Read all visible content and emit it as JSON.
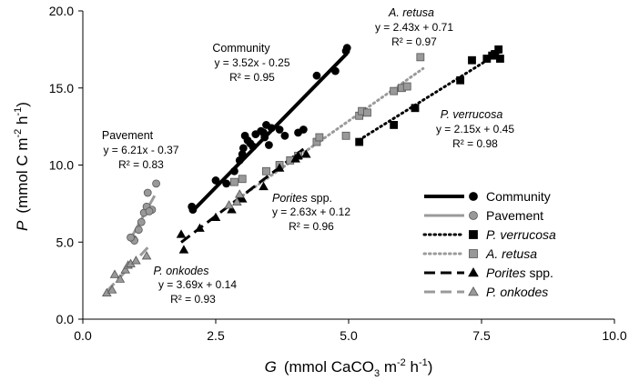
{
  "chart_data": {
    "type": "scatter",
    "xlabel": {
      "symbol": "G",
      "text": "(mmol CaCO",
      "sub": "3",
      "after": " m",
      "sup": "-2",
      "tail": " h",
      "sup2": "-1",
      "close": ")"
    },
    "ylabel": {
      "symbol": "P",
      "text": "(mmol C m",
      "sup": "-2",
      "tail": " h",
      "sup2": "-1",
      "close": ")"
    },
    "xlim": [
      0.0,
      10.0
    ],
    "ylim": [
      0.0,
      20.0
    ],
    "xticks": [
      "0.0",
      "2.5",
      "5.0",
      "7.5",
      "10.0"
    ],
    "xtick_values": [
      0,
      2.5,
      5,
      7.5,
      10
    ],
    "yticks": [
      "0.0",
      "5.0",
      "10.0",
      "15.0",
      "20.0"
    ],
    "ytick_values": [
      0,
      5,
      10,
      15,
      20
    ],
    "series": [
      {
        "name": "Community",
        "marker": "circle",
        "color": "#000000",
        "line": "solid",
        "points": [
          [
            2.07,
            7.1
          ],
          [
            2.05,
            7.3
          ],
          [
            2.5,
            9.0
          ],
          [
            2.7,
            8.8
          ],
          [
            2.85,
            9.6
          ],
          [
            2.95,
            10.3
          ],
          [
            3.0,
            10.7
          ],
          [
            3.02,
            11.1
          ],
          [
            3.1,
            11.6
          ],
          [
            3.15,
            11.4
          ],
          [
            3.05,
            11.9
          ],
          [
            3.2,
            11.2
          ],
          [
            3.25,
            12.0
          ],
          [
            3.35,
            12.2
          ],
          [
            3.4,
            12.1
          ],
          [
            3.42,
            11.8
          ],
          [
            3.5,
            11.3
          ],
          [
            3.55,
            12.4
          ],
          [
            3.45,
            12.6
          ],
          [
            3.7,
            12.3
          ],
          [
            3.8,
            11.9
          ],
          [
            4.05,
            12.1
          ],
          [
            4.15,
            12.3
          ],
          [
            4.4,
            15.8
          ],
          [
            4.75,
            16.1
          ],
          [
            4.97,
            17.6
          ],
          [
            4.95,
            17.4
          ]
        ],
        "trend": {
          "x": [
            2.07,
            4.97
          ]
        },
        "equation": "y = 3.52x - 0.25",
        "r2": "R² = 0.95",
        "label": "Community"
      },
      {
        "name": "Pavement",
        "marker": "circle",
        "color": "#999999",
        "line": "solid",
        "points": [
          [
            0.95,
            5.2
          ],
          [
            0.97,
            5.1
          ],
          [
            0.9,
            5.3
          ],
          [
            1.05,
            5.8
          ],
          [
            1.1,
            6.3
          ],
          [
            1.15,
            6.9
          ],
          [
            1.2,
            7.3
          ],
          [
            1.22,
            8.2
          ],
          [
            1.3,
            7.1
          ],
          [
            1.25,
            7.0
          ],
          [
            1.38,
            8.8
          ]
        ],
        "trend": {
          "x": [
            0.9,
            1.35
          ]
        },
        "equation": "y = 6.21x - 0.37",
        "r2": "R² = 0.83",
        "label": "Pavement"
      },
      {
        "name": "P. verrucosa",
        "marker": "square",
        "color": "#000000",
        "line": "dotted",
        "points": [
          [
            5.2,
            11.5
          ],
          [
            5.85,
            12.6
          ],
          [
            6.25,
            13.7
          ],
          [
            7.1,
            15.5
          ],
          [
            7.32,
            16.8
          ],
          [
            7.7,
            17.1
          ],
          [
            7.75,
            17.2
          ],
          [
            7.82,
            17.5
          ],
          [
            7.85,
            16.9
          ],
          [
            7.6,
            16.9
          ]
        ],
        "trend": {
          "x": [
            5.2,
            7.85
          ]
        },
        "equation": "y = 2.15x + 0.45",
        "r2": "R² = 0.98",
        "label": "P. verrucosa"
      },
      {
        "name": "A. retusa",
        "marker": "square",
        "color": "#999999",
        "line": "dotted",
        "points": [
          [
            2.85,
            8.9
          ],
          [
            3.0,
            9.1
          ],
          [
            3.45,
            9.6
          ],
          [
            3.7,
            10.0
          ],
          [
            3.9,
            10.3
          ],
          [
            4.05,
            10.6
          ],
          [
            4.4,
            11.5
          ],
          [
            4.45,
            11.8
          ],
          [
            4.95,
            11.9
          ],
          [
            5.2,
            13.2
          ],
          [
            5.25,
            13.5
          ],
          [
            5.35,
            13.4
          ],
          [
            5.85,
            14.8
          ],
          [
            6.0,
            15.0
          ],
          [
            6.1,
            15.1
          ],
          [
            6.35,
            17.0
          ]
        ],
        "trend": {
          "x": [
            2.85,
            6.4
          ]
        },
        "equation": "y = 2.43x + 0.71",
        "r2": "R² = 0.97",
        "label": "A. retusa"
      },
      {
        "name": "Porites spp.",
        "marker": "triangle",
        "color": "#000000",
        "line": "dashed",
        "points": [
          [
            1.9,
            4.5
          ],
          [
            1.85,
            5.5
          ],
          [
            2.2,
            5.9
          ],
          [
            2.5,
            6.6
          ],
          [
            2.8,
            7.1
          ],
          [
            3.0,
            7.8
          ],
          [
            3.4,
            8.6
          ],
          [
            3.7,
            9.8
          ],
          [
            4.0,
            10.4
          ],
          [
            4.05,
            10.6
          ],
          [
            4.2,
            10.7
          ]
        ],
        "trend": {
          "x": [
            1.85,
            4.15
          ]
        },
        "equation": "y = 2.63x + 0.12",
        "r2": "R² = 0.96",
        "label": "Porites spp."
      },
      {
        "name": "P. onkodes",
        "marker": "triangle",
        "color": "#999999",
        "line": "dashed",
        "points": [
          [
            0.45,
            1.7
          ],
          [
            0.55,
            1.9
          ],
          [
            0.7,
            2.6
          ],
          [
            0.6,
            2.9
          ],
          [
            0.8,
            3.2
          ],
          [
            0.85,
            3.5
          ],
          [
            0.9,
            3.6
          ],
          [
            1.0,
            3.8
          ],
          [
            1.2,
            4.1
          ],
          [
            2.9,
            7.6
          ],
          [
            2.95,
            8.1
          ],
          [
            2.75,
            7.4
          ]
        ],
        "trend": {
          "x": [
            0.45,
            1.25
          ]
        },
        "equation": "y = 3.69x + 0.14",
        "r2": "R² = 0.93",
        "label": "P. onkodes"
      }
    ],
    "legend": [
      {
        "label": "Community",
        "italic": false
      },
      {
        "label": "Pavement",
        "italic": false
      },
      {
        "label": "P. verrucosa",
        "italic": true
      },
      {
        "label": "A. retusa",
        "italic": true
      },
      {
        "label": "Porites",
        "suffix": " spp.",
        "italic": true
      },
      {
        "label": "P. onkodes",
        "italic": true
      }
    ]
  }
}
